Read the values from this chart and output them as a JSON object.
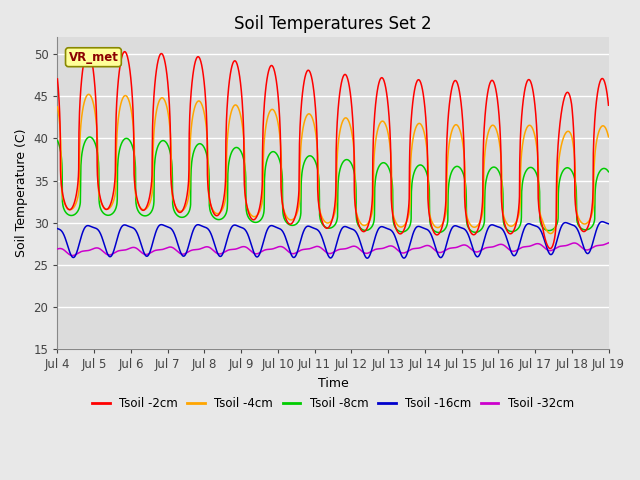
{
  "title": "Soil Temperatures Set 2",
  "xlabel": "Time",
  "ylabel": "Soil Temperature (C)",
  "ylim": [
    15,
    52
  ],
  "xlim_start": 0,
  "xlim_end": 15,
  "xtick_labels": [
    "Jul 4",
    "Jul 5",
    "Jul 6",
    "Jul 7",
    "Jul 8",
    "Jul 9",
    "Jul 10",
    "Jul 11",
    "Jul 12",
    "Jul 13",
    "Jul 14",
    "Jul 15",
    "Jul 16",
    "Jul 17",
    "Jul 18",
    "Jul 19"
  ],
  "ytick_values": [
    15,
    20,
    25,
    30,
    35,
    40,
    45,
    50
  ],
  "annotation_text": "VR_met",
  "colors": {
    "Tsoil -2cm": "#FF0000",
    "Tsoil -4cm": "#FFA500",
    "Tsoil -8cm": "#00CC00",
    "Tsoil -16cm": "#0000CC",
    "Tsoil -32cm": "#CC00CC"
  },
  "background_color": "#E8E8E8",
  "plot_bg_color": "#DCDCDC",
  "grid_color": "#FFFFFF",
  "title_fontsize": 12,
  "axis_label_fontsize": 9,
  "tick_fontsize": 8.5,
  "legend_fontsize": 8.5
}
